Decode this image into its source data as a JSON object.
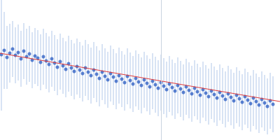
{
  "chart_data": {
    "type": "scatter",
    "xlim": [
      0,
      400
    ],
    "ylim": [
      0,
      200
    ],
    "tick_labels": false,
    "grid": false,
    "vline": 230,
    "series": [
      {
        "type": "scatter",
        "color": "#3262c4",
        "marker": "circle",
        "x": [
          2,
          6,
          10,
          14,
          18,
          22,
          26,
          30,
          34,
          38,
          42,
          46,
          50,
          54,
          58,
          62,
          66,
          70,
          74,
          78,
          82,
          86,
          90,
          94,
          98,
          102,
          106,
          110,
          114,
          118,
          122,
          126,
          130,
          134,
          138,
          142,
          146,
          150,
          154,
          158,
          162,
          166,
          170,
          174,
          178,
          182,
          186,
          190,
          194,
          198,
          202,
          206,
          210,
          214,
          218,
          222,
          226,
          230,
          234,
          238,
          242,
          246,
          250,
          254,
          258,
          262,
          266,
          270,
          274,
          278,
          282,
          286,
          290,
          294,
          298,
          302,
          306,
          310,
          314,
          318,
          322,
          326,
          330,
          334,
          338,
          342,
          346,
          350,
          354,
          358,
          362,
          366,
          370,
          374,
          378,
          382,
          386,
          390
        ],
        "values": [
          122,
          128,
          118,
          124,
          130,
          121,
          125,
          116,
          127,
          119,
          123,
          114,
          120,
          117,
          111,
          119,
          113,
          108,
          116,
          110,
          104,
          112,
          106,
          101,
          109,
          103,
          98,
          105,
          100,
          95,
          103,
          97,
          92,
          100,
          94,
          88,
          97,
          91,
          86,
          95,
          90,
          84,
          92,
          87,
          82,
          91,
          85,
          80,
          88,
          83,
          78,
          86,
          81,
          76,
          84,
          79,
          74,
          82,
          77,
          72,
          80,
          75,
          70,
          78,
          73,
          68,
          76,
          71,
          66,
          74,
          69,
          64,
          72,
          67,
          62,
          70,
          65,
          60,
          68,
          63,
          58,
          66,
          61,
          56,
          64,
          59,
          54,
          62,
          57,
          52,
          60,
          55,
          50,
          58,
          53,
          48,
          56,
          51
        ],
        "errors": [
          80,
          55,
          45,
          42,
          40,
          40,
          40,
          40,
          40,
          40,
          40,
          40,
          40,
          40,
          40,
          40,
          40,
          40,
          40,
          40,
          40,
          40,
          40,
          40,
          40,
          40,
          40,
          40,
          40,
          40,
          40,
          40,
          40,
          40,
          40,
          40,
          40,
          40,
          40,
          40,
          40,
          40,
          40,
          40,
          40,
          40,
          40,
          40,
          40,
          40,
          40,
          40,
          40,
          40,
          40,
          40,
          40,
          40,
          40,
          40,
          40,
          40,
          40,
          40,
          40,
          40,
          40,
          40,
          40,
          40,
          40,
          40,
          40,
          40,
          40,
          40,
          40,
          40,
          40,
          40,
          40,
          40,
          40,
          40,
          40,
          40,
          40,
          40,
          40,
          40,
          40,
          40,
          40,
          40,
          40,
          40,
          40,
          40
        ]
      },
      {
        "type": "line",
        "color": "#e03c3c",
        "x": [
          0,
          400
        ],
        "values": [
          124,
          55
        ]
      }
    ]
  }
}
